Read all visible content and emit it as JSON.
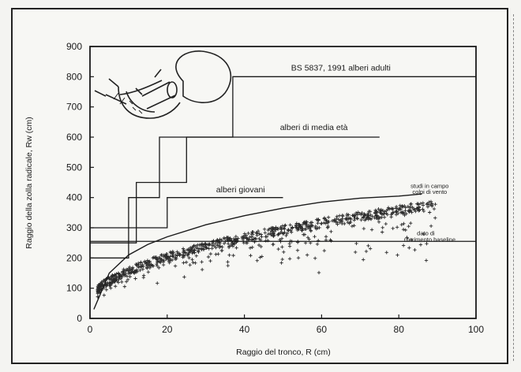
{
  "chart_data": {
    "type": "scatter",
    "xlabel": "Raggio del tronco, R (cm)",
    "ylabel": "Raggio della zolla radicale, Rw (cm)",
    "xlim": [
      0,
      100
    ],
    "ylim": [
      0,
      900
    ],
    "xticks": [
      "0",
      "20",
      "40",
      "60",
      "80",
      "100"
    ],
    "yticks": [
      "0",
      "100",
      "200",
      "300",
      "400",
      "500",
      "600",
      "700",
      "800",
      "900"
    ],
    "grid": false,
    "annotations": [
      {
        "text": "BS 5837, 1991 alberi adulti",
        "x": 65,
        "y": 820
      },
      {
        "text": "alberi di media età",
        "x": 58,
        "y": 623
      },
      {
        "text": "alberi giovani",
        "x": 39,
        "y": 417
      },
      {
        "text": "studi in campo",
        "x": 88,
        "y": 432
      },
      {
        "text": "colpi di vento",
        "x": 88,
        "y": 412
      },
      {
        "text": "dato di",
        "x": 87,
        "y": 275
      },
      {
        "text": "riferimento baseline",
        "x": 88,
        "y": 255
      }
    ],
    "steps": [
      {
        "name": "alberi adulti",
        "points": [
          [
            0,
            300
          ],
          [
            10,
            300
          ],
          [
            10,
            400
          ],
          [
            18,
            400
          ],
          [
            18,
            600
          ],
          [
            37,
            600
          ],
          [
            37,
            800
          ],
          [
            100,
            800
          ]
        ]
      },
      {
        "name": "alberi di media età",
        "points": [
          [
            0,
            250
          ],
          [
            12,
            250
          ],
          [
            12,
            450
          ],
          [
            25,
            450
          ],
          [
            25,
            600
          ],
          [
            75,
            600
          ]
        ]
      },
      {
        "name": "alberi giovani",
        "points": [
          [
            0,
            200
          ],
          [
            10,
            200
          ],
          [
            10,
            300
          ],
          [
            20,
            300
          ],
          [
            20,
            400
          ],
          [
            50,
            400
          ]
        ]
      }
    ],
    "envelope": {
      "name": "studi in campo colpi di vento",
      "points": [
        [
          1,
          30
        ],
        [
          5,
          150
        ],
        [
          10,
          210
        ],
        [
          15,
          245
        ],
        [
          20,
          270
        ],
        [
          30,
          310
        ],
        [
          40,
          340
        ],
        [
          50,
          365
        ],
        [
          60,
          385
        ],
        [
          70,
          398
        ],
        [
          80,
          405
        ],
        [
          86,
          412
        ]
      ]
    },
    "baseline": {
      "name": "dato di riferimento baseline",
      "y": 255,
      "x": [
        0,
        100
      ]
    },
    "series": [
      {
        "name": "",
        "n": 900,
        "seed": 7
      }
    ]
  }
}
